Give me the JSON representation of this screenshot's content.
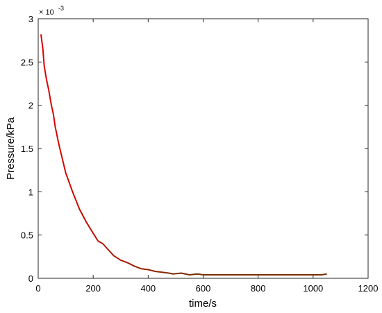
{
  "chart_data": {
    "type": "line",
    "xlabel": "time/s",
    "ylabel": "Pressure/kPa",
    "y_multiplier": {
      "base": "× 10",
      "exponent": "-3"
    },
    "xlim": [
      0,
      1200
    ],
    "xticks": [
      0,
      200,
      400,
      600,
      800,
      1000,
      1200
    ],
    "ylim": [
      0,
      3
    ],
    "yticks": [
      0,
      0.5,
      1,
      1.5,
      2,
      2.5,
      3
    ],
    "box": true,
    "grid": false,
    "series": [
      {
        "colors": [
          "#e00000",
          "#7a2e00"
        ],
        "x": [
          10,
          17,
          22,
          30,
          38,
          48,
          55,
          62,
          75,
          100,
          125,
          150,
          175,
          200,
          218,
          235,
          255,
          275,
          300,
          325,
          350,
          375,
          400,
          425,
          450,
          475,
          490,
          520,
          550,
          580,
          600,
          700,
          800,
          900,
          1000,
          1030,
          1050
        ],
        "values": [
          2.82,
          2.65,
          2.45,
          2.3,
          2.18,
          2.0,
          1.9,
          1.75,
          1.55,
          1.22,
          1.0,
          0.8,
          0.65,
          0.52,
          0.43,
          0.4,
          0.33,
          0.26,
          0.21,
          0.18,
          0.14,
          0.11,
          0.1,
          0.08,
          0.07,
          0.06,
          0.05,
          0.06,
          0.04,
          0.05,
          0.04,
          0.04,
          0.04,
          0.04,
          0.04,
          0.04,
          0.05
        ]
      }
    ]
  }
}
